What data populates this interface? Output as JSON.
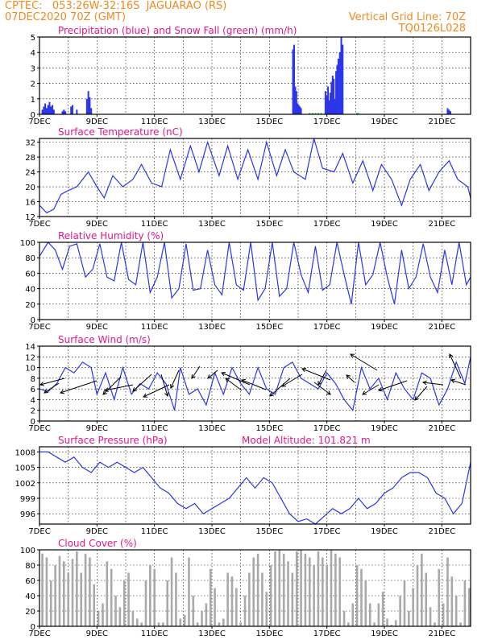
{
  "header": {
    "line1": "CPTEC:   053:26W-32:16S  JAGUARAO (RS)",
    "line2": "07DEC2020 70Z (GMT)",
    "grid_note": "Vertical Grid Line: 70Z",
    "code": "TQ0126L028"
  },
  "colors": {
    "header": "#f08a1e",
    "title": "#e0188a",
    "line": "#2a36e8",
    "snow": "#1fae2a",
    "cloud": "#a9a9a9"
  },
  "chart_data": [
    {
      "type": "bar",
      "title": "Precipitation (blue) and Snow Fall (green) (mm/h)",
      "x_range_days": [
        7,
        22
      ],
      "ylim": [
        0,
        5
      ],
      "y_ticks": [
        0,
        1,
        2,
        3,
        4,
        5
      ],
      "x_ticks": [
        "7DEC",
        "9DEC",
        "11DEC",
        "13DEC",
        "15DEC",
        "17DEC",
        "19DEC",
        "21DEC"
      ],
      "grid": true,
      "series": [
        {
          "name": "Precipitation",
          "color": "#2a36e8",
          "x_day": [
            7.1,
            7.15,
            7.2,
            7.25,
            7.3,
            7.35,
            7.4,
            7.45,
            7.5,
            7.8,
            7.85,
            7.9,
            8.1,
            8.15,
            8.3,
            8.65,
            8.7,
            8.75,
            8.8,
            15.82,
            15.86,
            15.9,
            15.94,
            15.98,
            16.02,
            16.06,
            16.1,
            16.95,
            17.0,
            17.04,
            17.08,
            17.12,
            17.16,
            17.2,
            17.24,
            17.28,
            17.32,
            17.36,
            17.4,
            17.45,
            17.5,
            17.55,
            21.2,
            21.25,
            21.3
          ],
          "values": [
            0.3,
            0.5,
            0.7,
            0.4,
            0.6,
            0.8,
            0.5,
            0.6,
            0.3,
            0.2,
            0.3,
            0.2,
            0.5,
            0.6,
            0.3,
            1.0,
            1.5,
            1.1,
            0.4,
            4.2,
            4.5,
            1.8,
            1.5,
            0.7,
            0.6,
            0.5,
            0.4,
            1.5,
            1.2,
            1.8,
            0.9,
            1.4,
            2.1,
            2.5,
            2.3,
            1.0,
            2.8,
            3.2,
            3.6,
            4.0,
            5.0,
            4.5,
            0.4,
            0.3,
            0.2
          ]
        },
        {
          "name": "Snow Fall",
          "color": "#1fae2a",
          "x_day": [
            16.4,
            16.5,
            16.6,
            16.7,
            16.8,
            18.05,
            18.1
          ],
          "values": [
            0.08,
            0.08,
            0.08,
            0.08,
            0.08,
            0.08,
            0.08
          ]
        }
      ]
    },
    {
      "type": "line",
      "title": "Surface Temperature (nC)",
      "x_range_days": [
        7,
        22
      ],
      "ylim": [
        12,
        33
      ],
      "y_ticks": [
        12,
        16,
        20,
        24,
        28,
        32
      ],
      "x_ticks": [
        "7DEC",
        "9DEC",
        "11DEC",
        "13DEC",
        "15DEC",
        "17DEC",
        "19DEC",
        "21DEC"
      ],
      "grid": true,
      "x": [
        7,
        7.25,
        7.5,
        7.75,
        8,
        8.3,
        8.7,
        9.0,
        9.25,
        9.55,
        9.9,
        10.25,
        10.55,
        10.9,
        11.25,
        11.55,
        11.9,
        12.25,
        12.55,
        12.85,
        13.25,
        13.55,
        13.9,
        14.25,
        14.6,
        14.9,
        15.25,
        15.55,
        15.85,
        16.25,
        16.55,
        16.85,
        17.25,
        17.55,
        17.9,
        18.25,
        18.6,
        18.9,
        19.25,
        19.6,
        19.9,
        20.25,
        20.55,
        20.9,
        21.25,
        21.55,
        21.9,
        22.0
      ],
      "y": [
        15,
        13,
        14,
        18,
        19,
        20,
        24,
        20,
        17,
        23,
        20,
        22,
        26,
        21,
        20,
        30,
        22,
        31,
        24,
        32,
        23,
        31,
        22,
        30,
        22,
        32,
        23,
        30,
        24,
        22,
        33,
        25,
        24,
        29,
        21,
        27,
        19,
        26,
        22,
        15,
        22,
        26,
        19,
        24,
        27,
        22,
        20,
        17
      ]
    },
    {
      "type": "line",
      "title": "Relative Humidity (%)",
      "x_range_days": [
        7,
        22
      ],
      "ylim": [
        0,
        100
      ],
      "y_ticks": [
        0,
        20,
        40,
        60,
        80,
        100
      ],
      "x_ticks": [
        "7DEC",
        "9DEC",
        "11DEC",
        "13DEC",
        "15DEC",
        "17DEC",
        "19DEC",
        "21DEC"
      ],
      "grid": true,
      "x": [
        7,
        7.3,
        7.55,
        7.8,
        8.05,
        8.3,
        8.6,
        8.85,
        9.1,
        9.35,
        9.6,
        9.85,
        10.1,
        10.35,
        10.6,
        10.85,
        11.1,
        11.35,
        11.6,
        11.85,
        12.1,
        12.35,
        12.6,
        12.85,
        13.1,
        13.35,
        13.6,
        13.85,
        14.1,
        14.35,
        14.6,
        14.85,
        15.1,
        15.35,
        15.6,
        15.85,
        16.1,
        16.35,
        16.6,
        16.85,
        17.1,
        17.35,
        17.6,
        17.85,
        18.1,
        18.35,
        18.6,
        18.85,
        19.1,
        19.35,
        19.6,
        19.85,
        20.1,
        20.35,
        20.6,
        20.85,
        21.1,
        21.35,
        21.6,
        21.85,
        22.0
      ],
      "y": [
        82,
        100,
        90,
        65,
        95,
        98,
        55,
        65,
        98,
        55,
        50,
        100,
        52,
        45,
        100,
        35,
        55,
        100,
        28,
        40,
        98,
        38,
        40,
        90,
        45,
        32,
        100,
        45,
        38,
        100,
        25,
        40,
        100,
        30,
        40,
        100,
        58,
        35,
        95,
        38,
        45,
        100,
        58,
        20,
        100,
        45,
        58,
        100,
        55,
        20,
        90,
        40,
        55,
        98,
        55,
        35,
        90,
        45,
        100,
        45,
        55
      ]
    },
    {
      "type": "line",
      "title": "Surface Wind (m/s)",
      "x_range_days": [
        7,
        22
      ],
      "ylim": [
        0,
        14
      ],
      "y_ticks": [
        0,
        2,
        4,
        6,
        8,
        10,
        12,
        14
      ],
      "x_ticks": [
        "7DEC",
        "9DEC",
        "11DEC",
        "13DEC",
        "15DEC",
        "17DEC",
        "19DEC",
        "21DEC"
      ],
      "grid": true,
      "x": [
        7,
        7.3,
        7.6,
        7.9,
        8.2,
        8.5,
        8.8,
        9.0,
        9.3,
        9.6,
        9.9,
        10.2,
        10.5,
        10.8,
        11.1,
        11.4,
        11.7,
        11.9,
        12.2,
        12.5,
        12.8,
        13.1,
        13.4,
        13.7,
        14.0,
        14.3,
        14.6,
        14.9,
        15.2,
        15.5,
        15.8,
        16.1,
        16.4,
        16.7,
        17.0,
        17.3,
        17.6,
        17.9,
        18.2,
        18.5,
        18.8,
        19.1,
        19.4,
        19.7,
        20.0,
        20.3,
        20.6,
        20.9,
        21.2,
        21.5,
        21.8,
        22.0
      ],
      "y": [
        6,
        5.5,
        7,
        10,
        9,
        11,
        10,
        5,
        9,
        4,
        10,
        5,
        7,
        6,
        9,
        7,
        2,
        10,
        5,
        6,
        3,
        9,
        5,
        10,
        7,
        5,
        10,
        6,
        5,
        10,
        11,
        8,
        7,
        6,
        9,
        7,
        4,
        2,
        10,
        6,
        8,
        4,
        9,
        6,
        4,
        9,
        8,
        3,
        6,
        11,
        7,
        12
      ]
    },
    {
      "type": "line",
      "title": "Surface Pressure (hPa)",
      "annotation": "Model Altitude: 101.821  m",
      "x_range_days": [
        7,
        22
      ],
      "ylim": [
        994,
        1009
      ],
      "y_ticks": [
        996,
        999,
        1002,
        1005,
        1008
      ],
      "x_ticks": [
        "7DEC",
        "9DEC",
        "11DEC",
        "13DEC",
        "15DEC",
        "17DEC",
        "19DEC",
        "21DEC"
      ],
      "grid": true,
      "x": [
        7,
        7.3,
        7.6,
        7.9,
        8.2,
        8.5,
        8.8,
        9.1,
        9.4,
        9.7,
        10.0,
        10.3,
        10.6,
        10.9,
        11.2,
        11.5,
        11.8,
        12.1,
        12.4,
        12.7,
        13.0,
        13.3,
        13.6,
        13.9,
        14.2,
        14.5,
        14.8,
        15.1,
        15.4,
        15.7,
        16.0,
        16.3,
        16.6,
        16.9,
        17.2,
        17.5,
        17.8,
        18.1,
        18.4,
        18.7,
        19.0,
        19.3,
        19.6,
        19.9,
        20.2,
        20.5,
        20.8,
        21.1,
        21.4,
        21.7,
        22.0
      ],
      "y": [
        1008,
        1008,
        1007,
        1006,
        1007,
        1005,
        1004,
        1006,
        1005,
        1006,
        1005,
        1004,
        1005,
        1003,
        1001,
        1000,
        998,
        997,
        998,
        996,
        997,
        998,
        999,
        1001,
        1003,
        1001,
        1003,
        1002,
        999,
        996,
        994.5,
        995,
        994,
        995.5,
        997,
        996,
        997,
        999,
        997,
        998,
        1000,
        1001,
        1003,
        1004,
        1004,
        1003,
        1000,
        999,
        996,
        998,
        1006
      ]
    },
    {
      "type": "bar",
      "title": "Cloud Cover (%)",
      "x_range_days": [
        7,
        22
      ],
      "ylim": [
        0,
        100
      ],
      "y_ticks": [
        0,
        20,
        40,
        60,
        80,
        100
      ],
      "x_ticks": [
        "7DEC",
        "9DEC",
        "11DEC",
        "13DEC",
        "15DEC",
        "17DEC",
        "19DEC",
        "21DEC"
      ],
      "grid": true,
      "series": [
        {
          "name": "Cloud Cover",
          "color": "#a9a9a9",
          "x_day": [
            7.1,
            7.25,
            7.4,
            7.55,
            7.7,
            7.85,
            8.0,
            8.15,
            8.3,
            8.45,
            8.6,
            8.75,
            8.9,
            9.05,
            9.2,
            9.35,
            9.5,
            9.65,
            9.8,
            9.95,
            10.1,
            10.25,
            10.4,
            10.55,
            10.7,
            10.85,
            11.0,
            11.15,
            11.3,
            11.45,
            11.6,
            11.75,
            11.9,
            12.05,
            12.2,
            12.35,
            12.5,
            12.65,
            12.8,
            12.95,
            13.1,
            13.25,
            13.4,
            13.55,
            13.7,
            13.85,
            14.0,
            14.15,
            14.3,
            14.45,
            14.6,
            14.75,
            14.9,
            15.05,
            15.2,
            15.35,
            15.5,
            15.65,
            15.8,
            15.95,
            16.1,
            16.25,
            16.4,
            16.55,
            16.7,
            16.85,
            17.0,
            17.15,
            17.3,
            17.45,
            17.6,
            17.75,
            17.9,
            18.05,
            18.2,
            18.35,
            18.5,
            18.65,
            18.8,
            18.95,
            19.1,
            19.25,
            19.4,
            19.55,
            19.7,
            19.85,
            20.0,
            20.15,
            20.3,
            20.45,
            20.6,
            20.75,
            20.9,
            21.05,
            21.2,
            21.35,
            21.5,
            21.65,
            21.8,
            21.95
          ],
          "values": [
            95,
            90,
            60,
            80,
            92,
            85,
            70,
            88,
            98,
            70,
            95,
            90,
            55,
            20,
            30,
            85,
            75,
            40,
            25,
            60,
            70,
            20,
            10,
            5,
            60,
            80,
            75,
            5,
            5,
            60,
            90,
            70,
            10,
            15,
            90,
            40,
            5,
            20,
            30,
            75,
            50,
            5,
            10,
            70,
            65,
            50,
            5,
            40,
            70,
            90,
            95,
            70,
            45,
            80,
            98,
            100,
            95,
            85,
            70,
            98,
            100,
            95,
            90,
            80,
            98,
            90,
            80,
            100,
            95,
            90,
            20,
            5,
            30,
            80,
            75,
            60,
            30,
            5,
            30,
            45,
            10,
            2,
            8,
            40,
            60,
            20,
            50,
            80,
            95,
            70,
            25,
            5,
            75,
            30,
            90,
            65,
            40,
            5,
            60,
            50
          ]
        }
      ]
    }
  ]
}
